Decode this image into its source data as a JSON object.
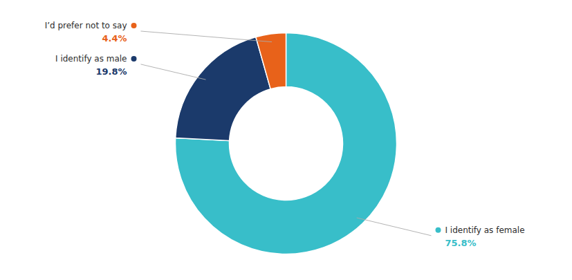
{
  "chart_data": {
    "type": "pie",
    "categories": [
      "I identify as female",
      "I identify as male",
      "I’d prefer not to say"
    ],
    "values": [
      75.8,
      19.8,
      4.4
    ],
    "value_labels": [
      "75.8%",
      "19.8%",
      "4.4%"
    ],
    "colors": [
      "#38bec9",
      "#1b3a6b",
      "#e8621a"
    ],
    "data_labels": true
  }
}
